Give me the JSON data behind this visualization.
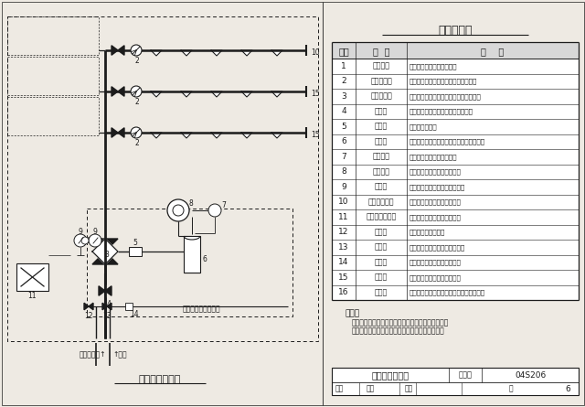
{
  "title": "主要部件表",
  "table_headers": [
    "编号",
    "名  称",
    "用    途"
  ],
  "table_rows": [
    [
      "1",
      "闸式喷头",
      "火灾发生时，开启出水灭火"
    ],
    [
      "2",
      "水流指示器",
      "水流动时，输出电信号，指示火灾区域"
    ],
    [
      "3",
      "湿式报警阀",
      "系统控制阀，开启时可输出报警水流信号"
    ],
    [
      "4",
      "信号阀",
      "供水控制阀，阀门关闭时输出电信号"
    ],
    [
      "5",
      "过滤器",
      "过滤水中的杂质"
    ],
    [
      "6",
      "延迟器",
      "延迟报警时间，克服水压变化引起的误报警"
    ],
    [
      "7",
      "压力开关",
      "报警阀开启时，发出电信号"
    ],
    [
      "8",
      "水力警铃",
      "报警阀开启时，发出音响信号"
    ],
    [
      "9",
      "压力表",
      "分别显示报警阀上、下部的水压"
    ],
    [
      "10",
      "末端试水装置",
      "试验末端水压及系统联动功能"
    ],
    [
      "11",
      "火灾报警控制器",
      "接收报警信号并发出控制命令"
    ],
    [
      "12",
      "进水阀",
      "系统检修时排空泄水"
    ],
    [
      "13",
      "试验阀",
      "试验报警阀功能及管件报警功能"
    ],
    [
      "14",
      "节流器",
      "节流排水，与延迟器共同工作"
    ],
    [
      "15",
      "试水阀",
      "分区放水及试验系统联动功能"
    ],
    [
      "16",
      "止回阀",
      "单向补水，防止压力变化引起报警阀误动作"
    ]
  ],
  "note_title": "说明：",
  "note_line1": "本图为湿式报警阀组的标准配置，各厂家的产品可能",
  "note_line2": "与此有所不同，但应满足报警阀的基本功能要求。",
  "footer_title": "湿式系统示意图",
  "footer_label1": "图集号",
  "footer_value1": "04S206",
  "footer_label2": "页",
  "footer_value2": "6",
  "diagram_subtitle": "湿式系统示意图",
  "bg_color": "#eeeae3",
  "line_color": "#1c1c1c"
}
